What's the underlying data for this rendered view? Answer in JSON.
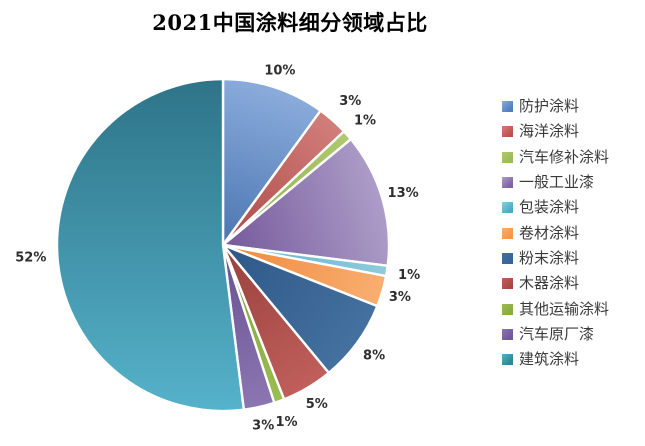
{
  "chart_data": {
    "type": "pie",
    "title": "2021中国涂料细分领域占比",
    "start_angle": "top",
    "direction": "clockwise",
    "legend_position": "right",
    "background": "#FFFFFF",
    "slice_border_color": "#FFFFFF",
    "label_text_color": "#2E2E2E",
    "categories": [
      "防护涂料",
      "海洋涂料",
      "汽车修补涂料",
      "一般工业漆",
      "包装涂料",
      "卷材涂料",
      "粉末涂料",
      "木器涂料",
      "其他运输涂料",
      "汽车原厂漆",
      "建筑涂料"
    ],
    "values": [
      10,
      3,
      1,
      13,
      1,
      3,
      8,
      5,
      1,
      3,
      52
    ],
    "labels": [
      "10%",
      "3%",
      "1%",
      "13%",
      "1%",
      "3%",
      "8%",
      "5%",
      "1%",
      "3%",
      "52%"
    ],
    "series": [
      {
        "name": "防护涂料",
        "value": 10,
        "label": "10%",
        "color": "#4F81BD",
        "color_light": "#8BACDC",
        "color_dark": "#4B76B1"
      },
      {
        "name": "海洋涂料",
        "value": 3,
        "label": "3%",
        "color": "#C0504D",
        "color_light": "#D17E7B",
        "color_dark": "#AE4A47"
      },
      {
        "name": "汽车修补涂料",
        "value": 1,
        "label": "1%",
        "color": "#9BBB59",
        "color_light": "#AFC96F",
        "color_dark": "#8FAC4E"
      },
      {
        "name": "一般工业漆",
        "value": 13,
        "label": "13%",
        "color": "#8064A2",
        "color_light": "#AD9DC8",
        "color_dark": "#75599B"
      },
      {
        "name": "包装涂料",
        "value": 1,
        "label": "1%",
        "color": "#4BACC6",
        "color_light": "#8FCBDC",
        "color_dark": "#5FB2CA"
      },
      {
        "name": "卷材涂料",
        "value": 3,
        "label": "3%",
        "color": "#F79646",
        "color_light": "#F9AE70",
        "color_dark": "#EE8A3D"
      },
      {
        "name": "粉末涂料",
        "value": 8,
        "label": "8%",
        "color": "#38649B",
        "color_light": "#44719F",
        "color_dark": "#2E5787"
      },
      {
        "name": "木器涂料",
        "value": 5,
        "label": "5%",
        "color": "#A84744",
        "color_light": "#C05F5B",
        "color_dark": "#98403D"
      },
      {
        "name": "其他运输涂料",
        "value": 1,
        "label": "1%",
        "color": "#89AB43",
        "color_light": "#9ABD52",
        "color_dark": "#7FA03A"
      },
      {
        "name": "汽车原厂漆",
        "value": 3,
        "label": "3%",
        "color": "#71589B",
        "color_light": "#8C76B2",
        "color_dark": "#675090"
      },
      {
        "name": "建筑涂料",
        "value": 52,
        "label": "52%",
        "color": "#31859B",
        "color_light": "#55B2CA",
        "color_dark": "#2E7488"
      }
    ]
  }
}
